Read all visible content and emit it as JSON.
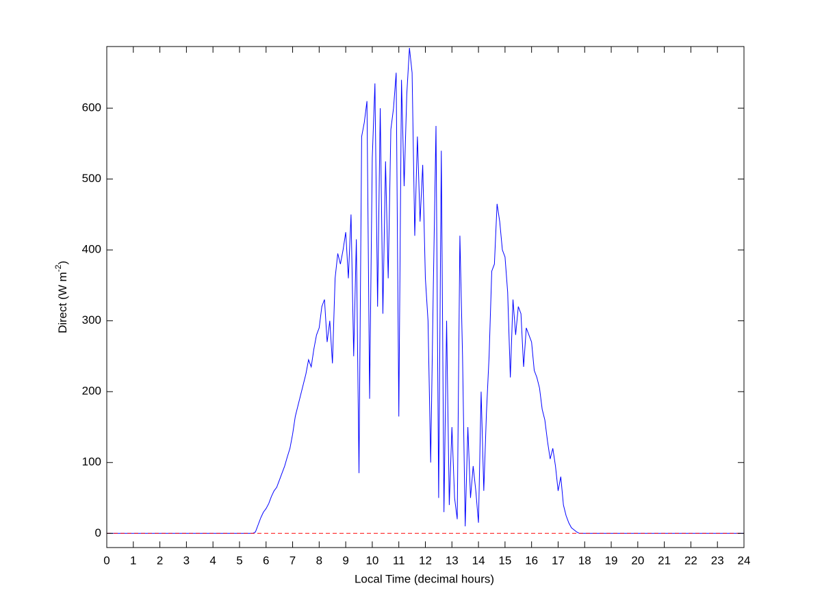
{
  "chart_data": {
    "type": "line",
    "xlabel": "Local Time (decimal hours)",
    "ylabel": [
      "Direct (W m",
      "-2",
      ")"
    ],
    "x": [
      0,
      0.5,
      1,
      1.5,
      2,
      2.5,
      3,
      3.5,
      4,
      4.5,
      5,
      5.5,
      5.6,
      5.7,
      5.8,
      5.9,
      6.0,
      6.1,
      6.2,
      6.3,
      6.4,
      6.5,
      6.6,
      6.7,
      6.8,
      6.9,
      7.0,
      7.1,
      7.2,
      7.3,
      7.4,
      7.5,
      7.6,
      7.7,
      7.8,
      7.9,
      8.0,
      8.1,
      8.2,
      8.3,
      8.4,
      8.5,
      8.6,
      8.7,
      8.8,
      8.9,
      9.0,
      9.1,
      9.2,
      9.3,
      9.4,
      9.5,
      9.6,
      9.7,
      9.8,
      9.9,
      10.0,
      10.1,
      10.2,
      10.3,
      10.4,
      10.5,
      10.6,
      10.7,
      10.8,
      10.9,
      11.0,
      11.1,
      11.2,
      11.3,
      11.4,
      11.5,
      11.6,
      11.7,
      11.8,
      11.9,
      12.0,
      12.1,
      12.2,
      12.3,
      12.4,
      12.5,
      12.6,
      12.7,
      12.8,
      12.9,
      13.0,
      13.1,
      13.2,
      13.3,
      13.4,
      13.5,
      13.6,
      13.7,
      13.8,
      13.9,
      14.0,
      14.1,
      14.2,
      14.3,
      14.4,
      14.5,
      14.6,
      14.7,
      14.8,
      14.9,
      15.0,
      15.1,
      15.2,
      15.3,
      15.4,
      15.5,
      15.6,
      15.7,
      15.8,
      15.9,
      16.0,
      16.1,
      16.2,
      16.3,
      16.4,
      16.5,
      16.6,
      16.7,
      16.8,
      16.9,
      17.0,
      17.1,
      17.2,
      17.3,
      17.4,
      17.5,
      17.6,
      17.7,
      17.8,
      17.9,
      18.0,
      18.5,
      19,
      19.5,
      20,
      20.5,
      21,
      21.5,
      22,
      22.5,
      23,
      23.5,
      24
    ],
    "series": [
      {
        "color": "#0000ff",
        "values": [
          0,
          0,
          0,
          0,
          0,
          0,
          0,
          0,
          0,
          0,
          0,
          0,
          2,
          12,
          22,
          30,
          35,
          42,
          52,
          60,
          65,
          75,
          85,
          95,
          108,
          120,
          140,
          165,
          180,
          195,
          210,
          225,
          245,
          235,
          260,
          280,
          290,
          320,
          330,
          270,
          300,
          240,
          360,
          395,
          380,
          400,
          425,
          360,
          450,
          250,
          415,
          85,
          560,
          580,
          610,
          190,
          530,
          635,
          320,
          600,
          310,
          525,
          360,
          570,
          600,
          650,
          165,
          640,
          490,
          620,
          685,
          650,
          420,
          560,
          440,
          520,
          360,
          300,
          100,
          350,
          575,
          50,
          540,
          30,
          300,
          40,
          150,
          50,
          20,
          420,
          250,
          10,
          150,
          50,
          95,
          60,
          15,
          200,
          60,
          170,
          250,
          370,
          380,
          465,
          440,
          400,
          390,
          340,
          220,
          330,
          280,
          320,
          310,
          235,
          290,
          280,
          270,
          230,
          220,
          205,
          175,
          160,
          130,
          105,
          120,
          95,
          60,
          80,
          40,
          25,
          15,
          8,
          5,
          2,
          0,
          0,
          0,
          0,
          0,
          0,
          0,
          0,
          0,
          0,
          0,
          0,
          0,
          0,
          0
        ]
      },
      {
        "color": "#ff0000",
        "linestyle": "dashed",
        "x": [
          0,
          24
        ],
        "values": [
          0,
          0
        ]
      }
    ],
    "xlim": [
      0,
      24
    ],
    "xticks": [
      0,
      1,
      2,
      3,
      4,
      5,
      6,
      7,
      8,
      9,
      10,
      11,
      12,
      13,
      14,
      15,
      16,
      17,
      18,
      19,
      20,
      21,
      22,
      23,
      24
    ],
    "ylim": [
      -20,
      687
    ],
    "yticks": [
      0,
      100,
      200,
      300,
      400,
      500,
      600
    ],
    "grid": false
  }
}
